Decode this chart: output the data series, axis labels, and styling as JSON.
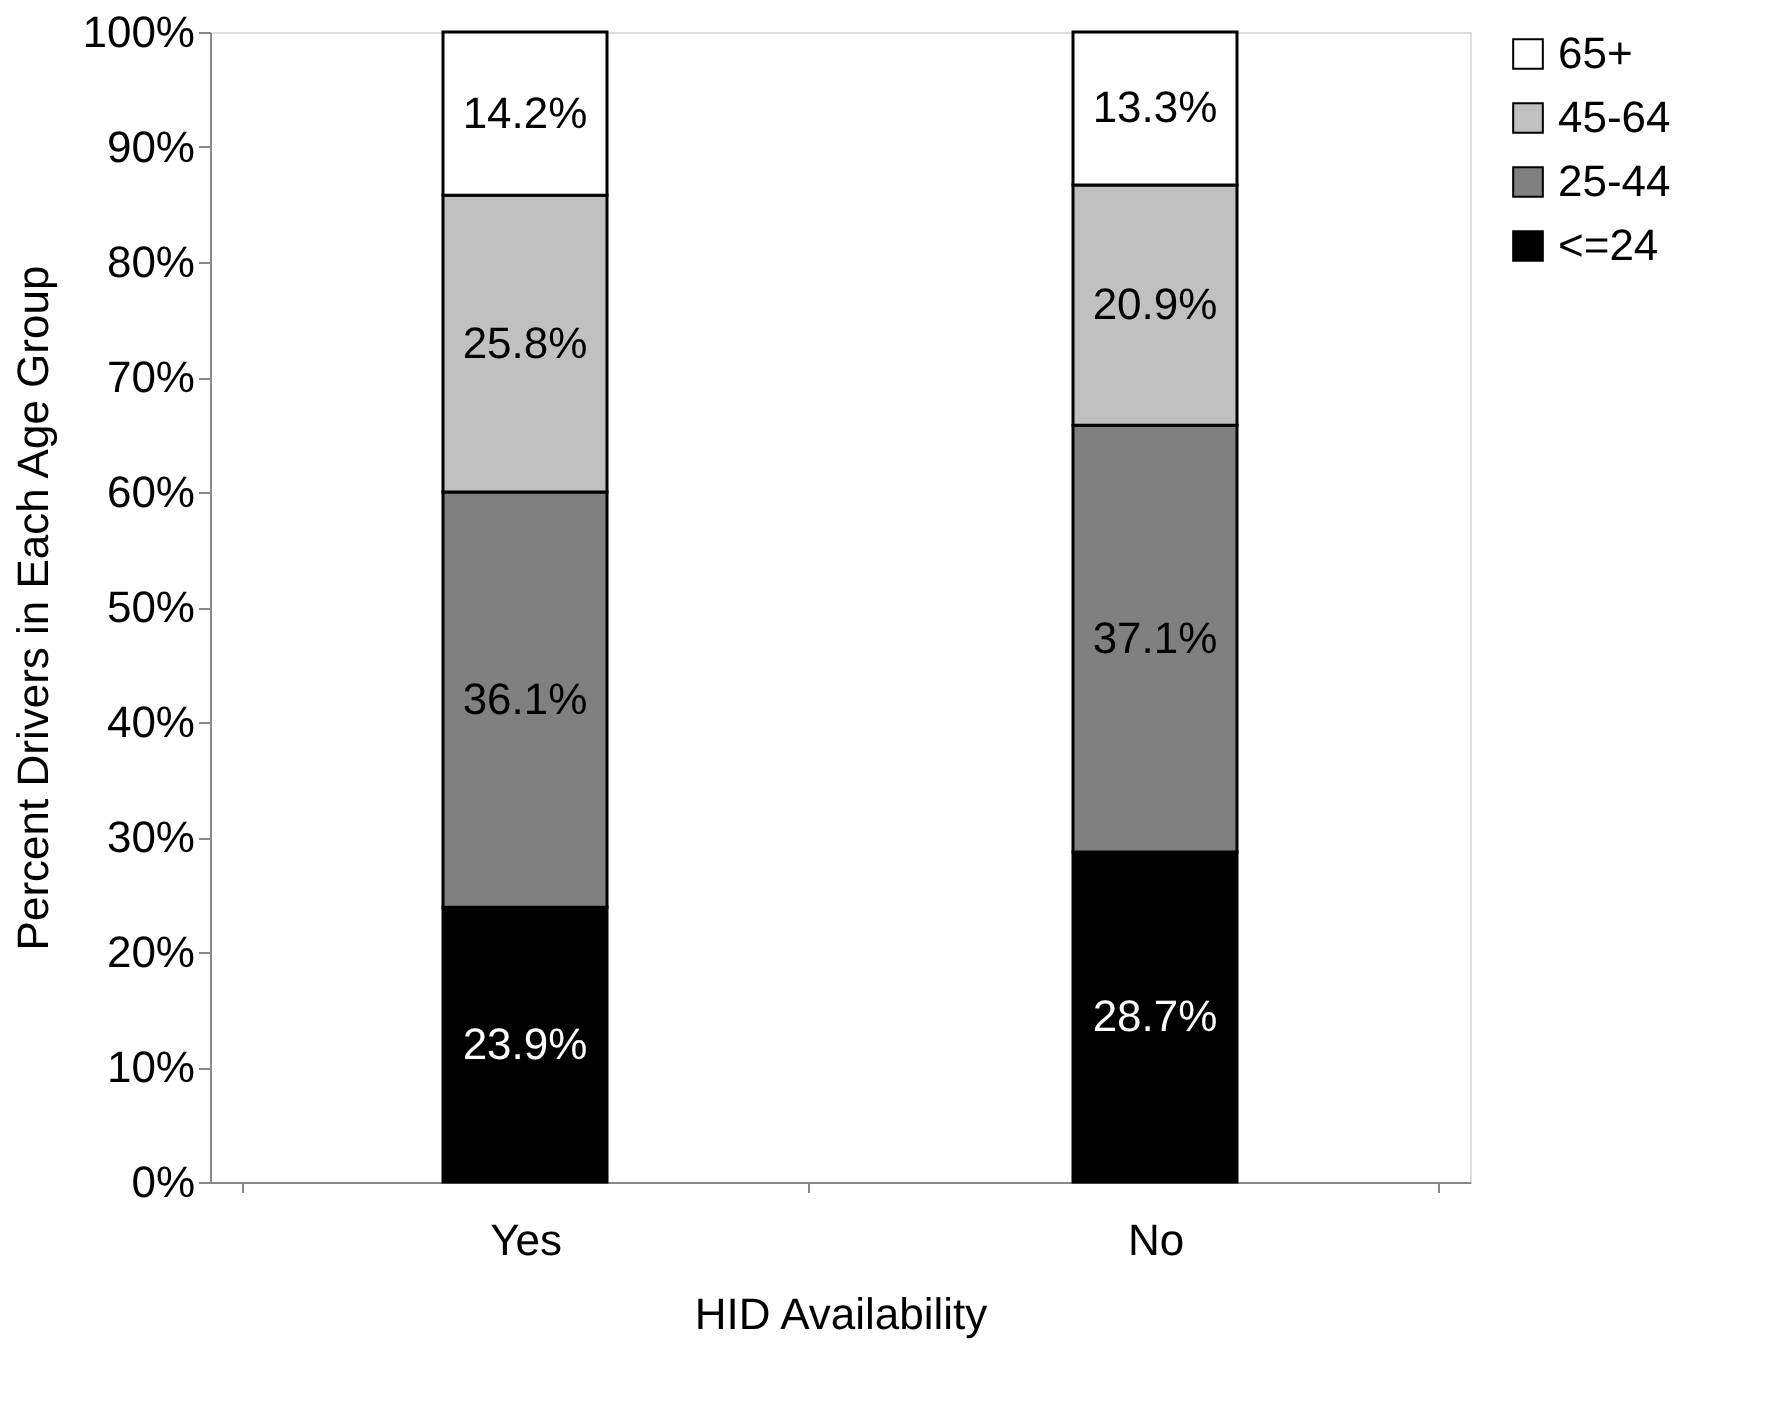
{
  "chart_data": {
    "type": "bar",
    "stacked": true,
    "xlabel": "HID Availability",
    "ylabel": "Percent Drivers in Each Age Group",
    "categories": [
      "Yes",
      "No"
    ],
    "series": [
      {
        "name": "<=24",
        "color": "#000000",
        "values": [
          23.9,
          28.7
        ],
        "value_labels": [
          "23.9%",
          "28.7%"
        ]
      },
      {
        "name": "25-44",
        "color": "#808080",
        "values": [
          36.1,
          37.1
        ],
        "value_labels": [
          "36.1%",
          "37.1%"
        ]
      },
      {
        "name": "45-64",
        "color": "#c0c0c0",
        "values": [
          25.8,
          20.9
        ],
        "value_labels": [
          "25.8%",
          "20.9%"
        ]
      },
      {
        "name": "65+",
        "color": "#ffffff",
        "values": [
          14.2,
          13.3
        ],
        "value_labels": [
          "14.2%",
          "13.3%"
        ]
      }
    ],
    "ylim": [
      0,
      100
    ],
    "yticks": [
      {
        "value": 0,
        "label": "0%"
      },
      {
        "value": 10,
        "label": "10%"
      },
      {
        "value": 20,
        "label": "20%"
      },
      {
        "value": 30,
        "label": "30%"
      },
      {
        "value": 40,
        "label": "40%"
      },
      {
        "value": 50,
        "label": "50%"
      },
      {
        "value": 60,
        "label": "60%"
      },
      {
        "value": 70,
        "label": "70%"
      },
      {
        "value": 80,
        "label": "80%"
      },
      {
        "value": 90,
        "label": "90%"
      },
      {
        "value": 100,
        "label": "100%"
      }
    ],
    "grid": false,
    "legend": "right"
  }
}
